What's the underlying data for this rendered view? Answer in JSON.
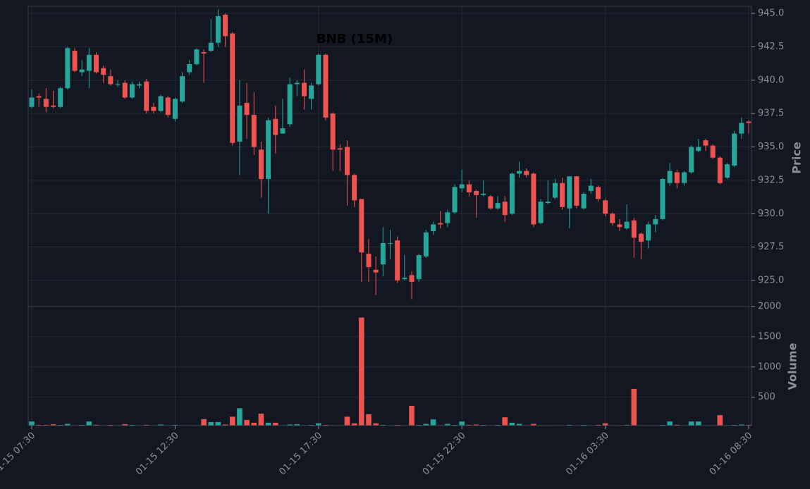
{
  "chart_data": {
    "type": "candlestick",
    "title": "BNB (15M)",
    "ylabel": "Price",
    "y2label": "Volume",
    "up_color": "#26a69a",
    "down_color": "#ef5350",
    "grid": true,
    "categories": [
      "01-15 07:30",
      null,
      null,
      null,
      null,
      null,
      null,
      null,
      null,
      null,
      null,
      null,
      null,
      null,
      null,
      null,
      null,
      null,
      null,
      null,
      "01-15 12:30",
      null,
      null,
      null,
      null,
      null,
      null,
      null,
      null,
      null,
      null,
      null,
      null,
      null,
      null,
      null,
      null,
      null,
      null,
      null,
      "01-15 17:30",
      null,
      null,
      null,
      null,
      null,
      null,
      null,
      null,
      null,
      null,
      null,
      null,
      null,
      null,
      null,
      null,
      null,
      null,
      null,
      "01-15 22:30",
      null,
      null,
      null,
      null,
      null,
      null,
      null,
      null,
      null,
      null,
      null,
      null,
      null,
      null,
      null,
      null,
      null,
      null,
      null,
      "01-16 03:30",
      null,
      null,
      null,
      null,
      null,
      null,
      null,
      null,
      null,
      null,
      null,
      null,
      null,
      null,
      null,
      null,
      null,
      null,
      null,
      "01-16 08:30"
    ],
    "open": [
      938.0,
      938.8,
      938.6,
      938.1,
      938.0,
      939.4,
      942.2,
      940.6,
      940.7,
      941.9,
      940.9,
      940.3,
      939.7,
      939.8,
      938.7,
      939.6,
      939.9,
      938.0,
      937.7,
      938.7,
      937.1,
      938.4,
      940.6,
      941.2,
      942.1,
      942.2,
      942.8,
      944.9,
      943.5,
      935.4,
      938.3,
      937.4,
      934.8,
      932.6,
      937.1,
      936.0,
      936.7,
      939.7,
      939.8,
      938.6,
      939.7,
      941.9,
      937.5,
      934.9,
      935.0,
      932.9,
      931.1,
      927.0,
      925.8,
      926.2,
      927.8,
      928.0,
      925.1,
      925.4,
      925.1,
      926.8,
      928.7,
      929.3,
      929.3,
      930.1,
      931.9,
      932.2,
      931.7,
      931.4,
      931.3,
      930.4,
      930.9,
      930.0,
      933.0,
      933.2,
      933.0,
      929.3,
      930.8,
      931.2,
      932.3,
      930.4,
      932.8,
      930.4,
      931.7,
      932.0,
      931.0,
      930.0,
      929.2,
      928.9,
      929.5,
      928.5,
      928.0,
      929.2,
      929.6,
      932.3,
      933.1,
      932.3,
      933.1,
      934.7,
      935.5,
      935.1,
      934.2,
      932.7,
      933.6,
      936.0,
      936.9
    ],
    "high": [
      939.3,
      939.0,
      939.4,
      939.2,
      939.5,
      942.5,
      942.4,
      941.5,
      942.4,
      942.1,
      941.1,
      940.8,
      940.0,
      940.0,
      939.9,
      939.9,
      940.1,
      938.3,
      938.9,
      938.8,
      938.7,
      940.6,
      941.5,
      942.4,
      942.3,
      944.6,
      945.3,
      945.0,
      943.6,
      940.0,
      939.8,
      939.1,
      935.4,
      937.2,
      938.1,
      938.6,
      940.2,
      940.0,
      940.8,
      939.8,
      942.0,
      942.0,
      937.6,
      935.2,
      935.5,
      933.0,
      931.1,
      928.1,
      926.8,
      929.0,
      928.8,
      928.3,
      926.9,
      925.7,
      927.0,
      928.8,
      929.4,
      930.2,
      930.3,
      932.2,
      933.3,
      932.5,
      931.8,
      932.5,
      931.4,
      931.3,
      931.3,
      933.1,
      933.9,
      933.4,
      933.1,
      931.1,
      932.5,
      932.6,
      932.7,
      932.8,
      932.8,
      931.6,
      932.6,
      932.1,
      931.1,
      930.1,
      929.6,
      930.7,
      929.7,
      928.6,
      929.4,
      929.9,
      932.7,
      933.8,
      933.3,
      933.2,
      935.1,
      935.6,
      935.6,
      935.2,
      934.3,
      933.8,
      936.2,
      937.2,
      937.0
    ],
    "low": [
      937.9,
      938.0,
      937.6,
      937.9,
      937.9,
      939.3,
      940.6,
      940.3,
      939.4,
      940.5,
      939.8,
      939.6,
      939.5,
      938.6,
      938.6,
      939.4,
      937.5,
      937.5,
      937.6,
      937.2,
      936.9,
      938.3,
      940.4,
      941.1,
      939.8,
      942.1,
      942.5,
      942.5,
      935.1,
      932.9,
      935.6,
      934.4,
      931.2,
      930.0,
      934.5,
      936.0,
      936.5,
      938.8,
      937.8,
      937.8,
      939.6,
      937.0,
      933.2,
      933.2,
      930.6,
      930.5,
      924.9,
      924.9,
      923.9,
      925.3,
      926.6,
      924.8,
      925.0,
      923.6,
      924.9,
      926.7,
      928.4,
      928.9,
      929.0,
      930.0,
      931.6,
      931.3,
      929.7,
      931.3,
      930.3,
      930.3,
      929.4,
      929.9,
      932.7,
      932.7,
      929.0,
      929.2,
      930.7,
      931.1,
      930.3,
      928.9,
      930.4,
      930.3,
      931.5,
      930.9,
      929.8,
      929.1,
      928.7,
      928.8,
      926.7,
      926.6,
      927.4,
      928.6,
      929.5,
      932.1,
      931.9,
      932.1,
      933.0,
      934.6,
      934.7,
      934.1,
      932.2,
      932.6,
      933.5,
      935.6,
      936.0
    ],
    "close": [
      938.7,
      938.7,
      938.0,
      938.0,
      939.4,
      942.4,
      940.7,
      940.8,
      941.9,
      940.6,
      940.4,
      939.7,
      939.7,
      938.7,
      939.7,
      939.7,
      937.7,
      937.7,
      938.8,
      937.4,
      938.6,
      940.3,
      941.2,
      942.3,
      942.0,
      942.8,
      944.8,
      943.3,
      935.3,
      938.1,
      937.4,
      935.0,
      932.6,
      937.0,
      935.9,
      936.4,
      939.7,
      939.8,
      938.8,
      939.6,
      941.9,
      937.2,
      934.8,
      934.8,
      932.9,
      931.0,
      927.1,
      926.0,
      925.6,
      927.8,
      927.8,
      925.0,
      925.2,
      924.9,
      926.9,
      928.6,
      929.2,
      929.2,
      930.1,
      932.0,
      932.2,
      931.6,
      931.4,
      931.5,
      930.4,
      930.8,
      929.9,
      933.0,
      933.2,
      932.9,
      929.2,
      930.9,
      930.9,
      932.3,
      930.5,
      932.8,
      930.6,
      931.5,
      932.1,
      931.1,
      930.0,
      929.3,
      929.0,
      929.4,
      928.2,
      927.9,
      929.2,
      929.6,
      932.6,
      933.2,
      932.3,
      933.1,
      935.0,
      935.0,
      935.1,
      934.2,
      932.3,
      933.7,
      936.0,
      936.8,
      936.8
    ],
    "volume": [
      100,
      45,
      45,
      55,
      45,
      60,
      40,
      45,
      100,
      45,
      40,
      45,
      40,
      55,
      45,
      40,
      45,
      40,
      50,
      40,
      45,
      40,
      40,
      40,
      140,
      90,
      90,
      50,
      180,
      320,
      125,
      80,
      230,
      80,
      80,
      40,
      50,
      55,
      40,
      45,
      70,
      45,
      40,
      40,
      180,
      70,
      1820,
      220,
      70,
      45,
      40,
      45,
      40,
      360,
      45,
      60,
      135,
      40,
      60,
      45,
      100,
      45,
      50,
      45,
      40,
      45,
      170,
      80,
      60,
      40,
      60,
      40,
      40,
      40,
      40,
      45,
      40,
      45,
      40,
      45,
      70,
      40,
      40,
      45,
      640,
      40,
      40,
      40,
      45,
      100,
      45,
      40,
      100,
      100,
      40,
      40,
      205,
      40,
      45,
      50,
      45
    ],
    "ylim": [
      923.05,
      945.53
    ],
    "yticks": [
      {
        "value": 925,
        "label": "925.0"
      },
      927.5,
      {
        "value": 930,
        "label": "930.0"
      },
      932.5,
      {
        "value": 935,
        "label": "935.0"
      },
      937.5,
      {
        "value": 940,
        "label": "940.0"
      },
      942.5,
      {
        "value": 945,
        "label": "945.0"
      }
    ],
    "y2lim": [
      30,
      2000
    ],
    "y2ticks": [
      500,
      1000,
      1500,
      2000
    ]
  }
}
